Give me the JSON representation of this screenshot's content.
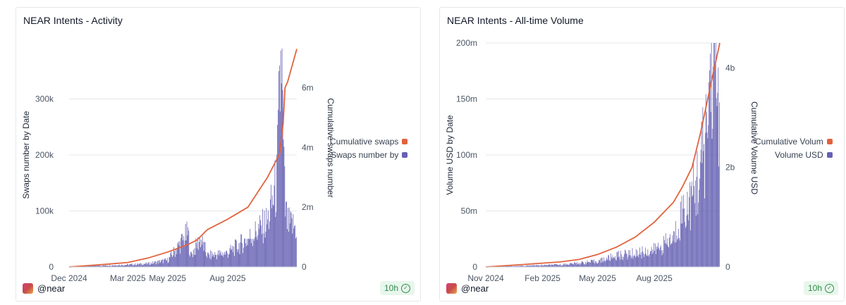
{
  "colors": {
    "line": "#e1633e",
    "bars": "#6661b3",
    "grid": "#e5e7eb",
    "axis_text": "#4b5563"
  },
  "chart_data": [
    {
      "type": "bar",
      "title": "NEAR Intents - Activity",
      "user": "@near",
      "refresh": "10h",
      "xlabel": "",
      "ylabel": "Swaps number by Date",
      "y2label": "Cumulative swaps number",
      "ylim": [
        0,
        400000
      ],
      "y2lim": [
        0,
        7500000
      ],
      "yticks": [
        0,
        100000,
        200000,
        300000
      ],
      "ytick_labels": [
        "0",
        "100k",
        "200k",
        "300k"
      ],
      "y2ticks": [
        0,
        2000000,
        4000000,
        6000000
      ],
      "y2tick_labels": [
        "0",
        "2m",
        "4m",
        "6m"
      ],
      "xticks": [
        {
          "date": "2024-12-01",
          "label": "Dec 2024"
        },
        {
          "date": "2025-03-01",
          "label": "Mar 2025"
        },
        {
          "date": "2025-05-01",
          "label": "May 2025"
        },
        {
          "date": "2025-08-01",
          "label": "Aug 2025"
        }
      ],
      "x_range": [
        "2024-12-01",
        "2025-11-15"
      ],
      "legend": [
        {
          "label": "Cumulative swaps",
          "series": "line"
        },
        {
          "label": "Swaps number by",
          "series": "bars"
        }
      ],
      "legend_position": "right",
      "series": [
        {
          "name": "Cumulative swaps",
          "kind": "line",
          "axis": "right",
          "dates": [
            "2024-12-01",
            "2025-01-01",
            "2025-02-01",
            "2025-03-01",
            "2025-04-01",
            "2025-05-01",
            "2025-06-01",
            "2025-06-15",
            "2025-07-01",
            "2025-08-01",
            "2025-09-01",
            "2025-10-01",
            "2025-10-20",
            "2025-10-25",
            "2025-10-28",
            "2025-11-01",
            "2025-11-15"
          ],
          "values": [
            0,
            50000,
            100000,
            150000,
            300000,
            500000,
            750000,
            900000,
            1250000,
            1600000,
            2000000,
            3000000,
            3800000,
            4800000,
            6000000,
            6200000,
            7300000
          ]
        },
        {
          "name": "Swaps number by",
          "kind": "bars",
          "axis": "left",
          "dates": [
            "2024-12-01",
            "2025-01-01",
            "2025-02-01",
            "2025-03-01",
            "2025-04-01",
            "2025-05-01",
            "2025-06-01",
            "2025-06-05",
            "2025-06-20",
            "2025-07-01",
            "2025-08-01",
            "2025-09-01",
            "2025-10-01",
            "2025-10-15",
            "2025-10-22",
            "2025-10-25",
            "2025-10-28",
            "2025-11-01",
            "2025-11-15"
          ],
          "values": [
            1000,
            2000,
            3000,
            4000,
            6000,
            12000,
            60000,
            20000,
            50000,
            20000,
            25000,
            50000,
            80000,
            150000,
            390000,
            200000,
            100000,
            75000,
            70000
          ]
        }
      ]
    },
    {
      "type": "bar",
      "title": "NEAR Intents - All-time Volume",
      "user": "@near",
      "refresh": "10h",
      "xlabel": "",
      "ylabel": "Volume USD by Date",
      "y2label": "Cumulative Volume USD",
      "ylim": [
        0,
        200000000
      ],
      "y2lim": [
        0,
        4500000000
      ],
      "yticks": [
        0,
        50000000,
        100000000,
        150000000,
        200000000
      ],
      "ytick_labels": [
        "0",
        "50m",
        "100m",
        "150m",
        "200m"
      ],
      "y2ticks": [
        0,
        2000000000,
        4000000000
      ],
      "y2tick_labels": [
        "0",
        "2b",
        "4b"
      ],
      "xticks": [
        {
          "date": "2024-11-01",
          "label": "Nov 2024"
        },
        {
          "date": "2025-02-01",
          "label": "Feb 2025"
        },
        {
          "date": "2025-05-01",
          "label": "May 2025"
        },
        {
          "date": "2025-08-01",
          "label": "Aug 2025"
        }
      ],
      "x_range": [
        "2024-11-01",
        "2025-11-15"
      ],
      "legend": [
        {
          "label": "Cumulative Volum",
          "series": "line"
        },
        {
          "label": "Volume USD",
          "series": "bars"
        }
      ],
      "legend_position": "right",
      "series": [
        {
          "name": "Cumulative Volum",
          "kind": "line",
          "axis": "right",
          "dates": [
            "2024-11-01",
            "2025-01-01",
            "2025-03-01",
            "2025-04-01",
            "2025-05-01",
            "2025-06-01",
            "2025-07-01",
            "2025-08-01",
            "2025-09-01",
            "2025-09-15",
            "2025-10-01",
            "2025-10-15",
            "2025-11-01",
            "2025-11-15"
          ],
          "values": [
            0,
            50000000,
            100000000,
            150000000,
            250000000,
            400000000,
            600000000,
            900000000,
            1300000000,
            1600000000,
            2000000000,
            2700000000,
            3700000000,
            4500000000
          ]
        },
        {
          "name": "Volume USD",
          "kind": "bars",
          "axis": "left",
          "dates": [
            "2024-11-01",
            "2025-01-01",
            "2025-03-01",
            "2025-05-01",
            "2025-06-01",
            "2025-07-01",
            "2025-08-01",
            "2025-09-01",
            "2025-09-15",
            "2025-10-01",
            "2025-10-15",
            "2025-10-25",
            "2025-11-01",
            "2025-11-08",
            "2025-11-15"
          ],
          "values": [
            200000,
            1000000,
            2000000,
            5000000,
            10000000,
            12000000,
            15000000,
            25000000,
            50000000,
            60000000,
            90000000,
            120000000,
            200000000,
            160000000,
            150000000
          ]
        }
      ]
    }
  ]
}
